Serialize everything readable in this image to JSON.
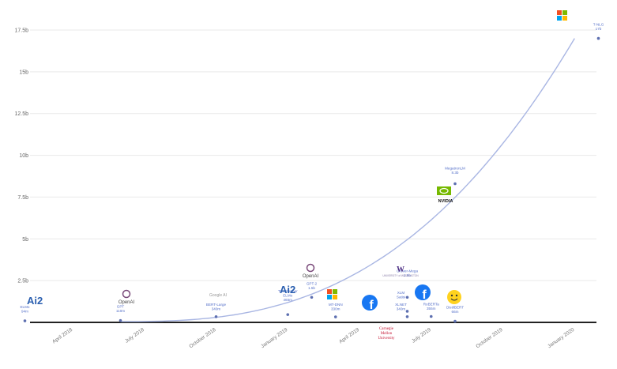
{
  "chart_data": {
    "type": "scatter",
    "title": "",
    "xlabel": "",
    "ylabel": "",
    "x_ticks": [
      "April 2018",
      "July 2018",
      "October 2018",
      "January 2019",
      "April 2019",
      "July 2019",
      "October 2019",
      "January 2020"
    ],
    "y_ticks": [
      "2.5b",
      "5b",
      "7.5b",
      "10b",
      "12.5b",
      "15b",
      "17.5b"
    ],
    "ylim": [
      0,
      17.5
    ],
    "grid": true,
    "trend_line": true,
    "points": [
      {
        "id": "elmo",
        "date": "2018-02",
        "params_b": 0.094,
        "name": "ELMo",
        "size": "94m",
        "org": "Ai2"
      },
      {
        "id": "gpt",
        "date": "2018-06",
        "params_b": 0.11,
        "name": "GPT",
        "size": "110m",
        "org": "OpenAI"
      },
      {
        "id": "bert",
        "date": "2018-10",
        "params_b": 0.34,
        "name": "BERT-Large",
        "size": "340m",
        "org": "Google AI"
      },
      {
        "id": "transformer-elmo",
        "date": "2019-01",
        "params_b": 0.465,
        "name": "Transformer ELMo",
        "size": "465m",
        "org": "Ai2"
      },
      {
        "id": "gpt2",
        "date": "2019-02",
        "params_b": 1.5,
        "name": "GPT-2",
        "size": "1.5b",
        "org": "OpenAI"
      },
      {
        "id": "mt-dnn",
        "date": "2019-03",
        "params_b": 0.33,
        "name": "MT-DNN",
        "size": "330m",
        "org": "Microsoft"
      },
      {
        "id": "xlm",
        "date": "2019-06",
        "params_b": 0.665,
        "name": "XLM Satisi",
        "size": "",
        "org": "Facebook"
      },
      {
        "id": "xlnet",
        "date": "2019-06",
        "params_b": 0.34,
        "name": "XLNET",
        "size": "340m",
        "org": "Carnegie Mellon University"
      },
      {
        "id": "grover",
        "date": "2019-06",
        "params_b": 1.5,
        "name": "Grover-Mega",
        "size": "1.5b",
        "org": "University of Washington"
      },
      {
        "id": "roberta",
        "date": "2019-07",
        "params_b": 0.355,
        "name": "RoBERTa",
        "size": "355m",
        "org": "Facebook"
      },
      {
        "id": "distilbert",
        "date": "2019-08",
        "params_b": 0.066,
        "name": "DistilBERT",
        "size": "66m",
        "org": "Hugging Face"
      },
      {
        "id": "megatron",
        "date": "2019-08",
        "params_b": 8.3,
        "name": "MegatronLM",
        "size": "8.3b",
        "org": "NVIDIA"
      },
      {
        "id": "tnlg",
        "date": "2020-02",
        "params_b": 17,
        "name": "T-NLG",
        "size": "17b",
        "org": "Microsoft"
      }
    ],
    "colors": {
      "line": "#a9b6e3",
      "marker": "#5d6fb0",
      "label": "#5570c9",
      "grid": "#e9e9e9",
      "axis": "#222222"
    }
  },
  "orgs": {
    "ai2": "Ai2",
    "openai": "OpenAI",
    "google": "Google AI",
    "nvidia": "NVIDIA",
    "cmu": [
      "Carnegie",
      "Mellon",
      "University"
    ],
    "uw": "UNIVERSITY of WASHINGTON"
  }
}
